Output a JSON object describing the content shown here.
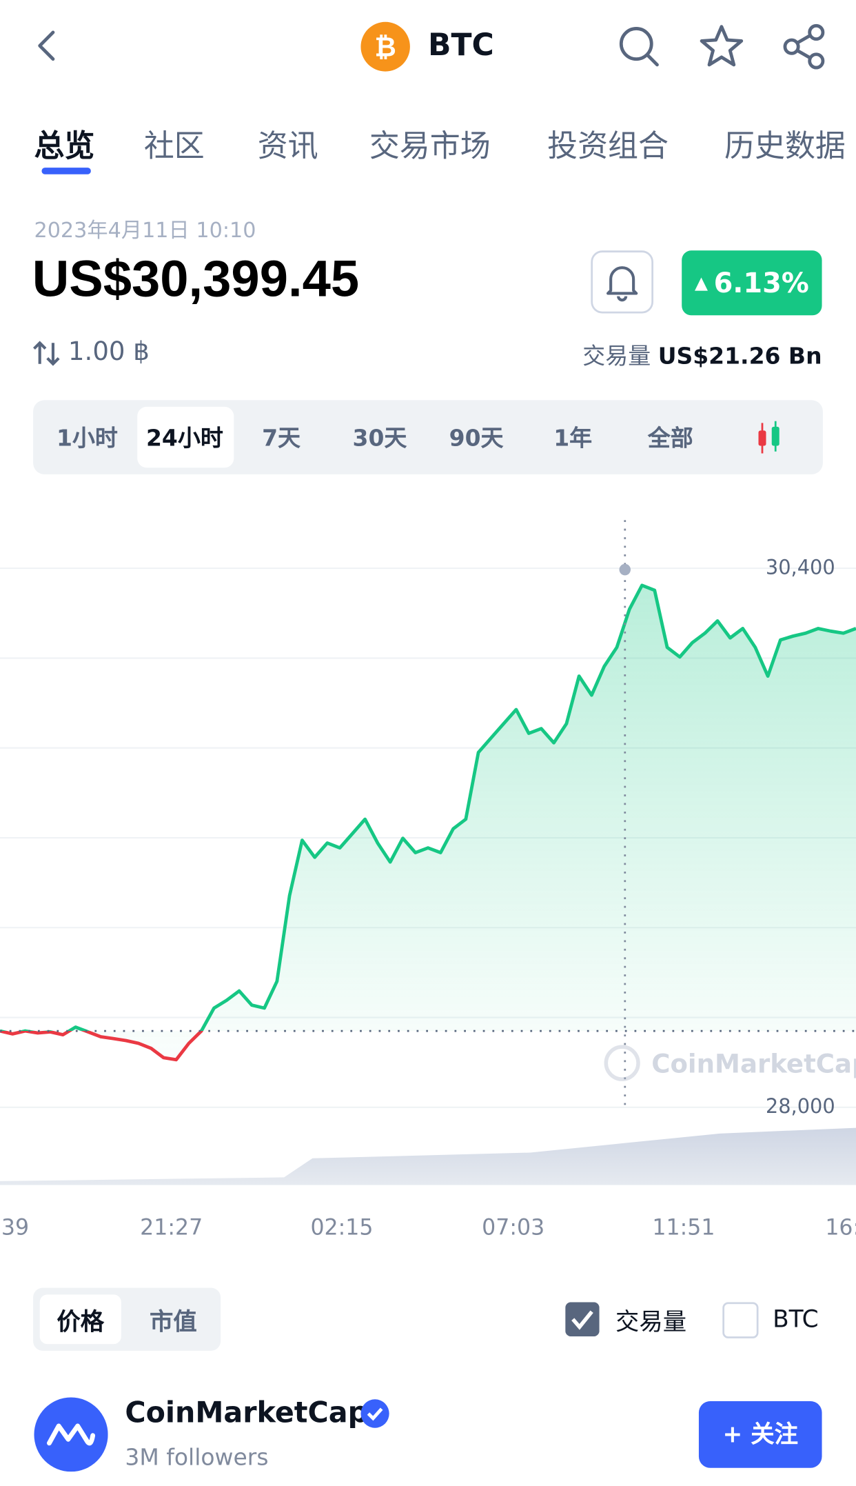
{
  "header": {
    "title": "BTC"
  },
  "tabs": [
    "总览",
    "社区",
    "资讯",
    "交易市场",
    "投资组合",
    "历史数据"
  ],
  "price_panel": {
    "date": "2023年4月11日 10:10",
    "price": "US$30,399.45",
    "amount": "1.00 ฿",
    "change": "6.13%",
    "volume_label": "交易量",
    "volume": "US$21.26 Bn"
  },
  "ranges": [
    "1小时",
    "24小时",
    "7天",
    "30天",
    "90天",
    "1年",
    "全部"
  ],
  "chart_data": {
    "type": "line",
    "watermark": "CoinMarketCap",
    "series": [
      {
        "up_color": "#16c784",
        "down_color": "#ea3943",
        "values": [
          28340,
          28327,
          28340,
          28331,
          28336,
          28323,
          28357,
          28336,
          28314,
          28306,
          28297,
          28285,
          28263,
          28221,
          28212,
          28285,
          28340,
          28442,
          28476,
          28518,
          28455,
          28442,
          28561,
          28943,
          29189,
          29113,
          29177,
          29155,
          29219,
          29283,
          29177,
          29092,
          29198,
          29134,
          29155,
          29134,
          29240,
          29283,
          29580,
          29644,
          29708,
          29771,
          29665,
          29686,
          29623,
          29708,
          29920,
          29835,
          29963,
          30048,
          30217,
          30324,
          30302,
          30048,
          30005,
          30069,
          30111,
          30166,
          30090,
          30132,
          30048,
          29920,
          30081,
          30098,
          30111,
          30132,
          30120,
          30111,
          30132
        ]
      }
    ],
    "baseline": 28340,
    "ylim": [
      27650,
      30640
    ],
    "yticks": [
      {
        "value": 28000,
        "label": "28,000"
      },
      {
        "value": 30400,
        "label": "30,400"
      }
    ],
    "gridlines": [
      28400,
      28800,
      29200,
      29600,
      30000
    ],
    "x_labels": [
      "39",
      "21:27",
      "02:15",
      "07:03",
      "11:51",
      "16:"
    ]
  },
  "chart_toggle": [
    "价格",
    "市值"
  ],
  "options": [
    "交易量",
    "BTC"
  ],
  "profile": {
    "name": "CoinMarketCap",
    "followers": "3M followers",
    "follow": "+ 关注"
  }
}
